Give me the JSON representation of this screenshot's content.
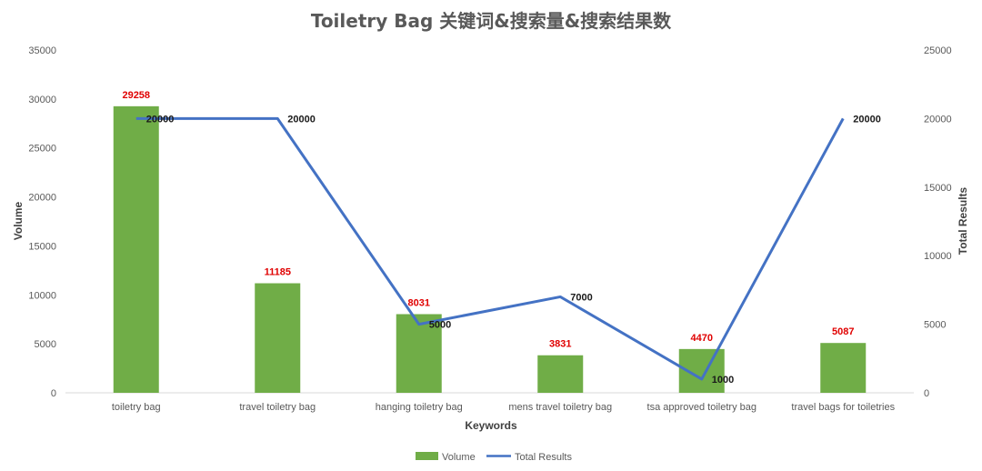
{
  "chart_data": {
    "type": "bar",
    "title": "Toiletry Bag 关键词&搜索量&搜索结果数",
    "xlabel": "Keywords",
    "ylabel": "Volume",
    "y2label": "Total Results",
    "ylim": [
      0,
      35000
    ],
    "y_ticks": [
      0,
      5000,
      10000,
      15000,
      20000,
      25000,
      30000,
      35000
    ],
    "y2lim": [
      0,
      25000
    ],
    "y2_ticks": [
      0,
      5000,
      10000,
      15000,
      20000,
      25000
    ],
    "categories": [
      "toiletry bag",
      "travel toiletry bag",
      "hanging toiletry bag",
      "mens travel toiletry bag",
      "tsa approved toiletry bag",
      "travel bags for toiletries"
    ],
    "series": [
      {
        "name": "Volume",
        "type": "bar",
        "axis": "left",
        "color": "#70ad47",
        "values": [
          29258,
          11185,
          8031,
          3831,
          4470,
          5087
        ]
      },
      {
        "name": "Total Results",
        "type": "line",
        "axis": "right",
        "color": "#4472c4",
        "values": [
          20000,
          20000,
          5000,
          7000,
          1000,
          20000
        ]
      }
    ],
    "legend_position": "bottom",
    "grid": false
  }
}
